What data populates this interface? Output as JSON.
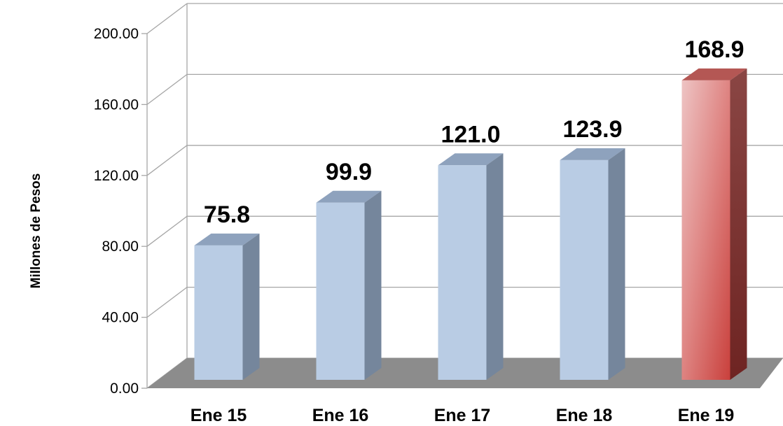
{
  "chart_data": {
    "type": "bar",
    "categories": [
      "Ene 15",
      "Ene 16",
      "Ene 17",
      "Ene 18",
      "Ene 19"
    ],
    "values": [
      75.8,
      99.9,
      121.0,
      123.9,
      168.9
    ],
    "value_labels": [
      "75.8",
      "99.9",
      "121.0",
      "123.9",
      "168.9"
    ],
    "ylabel": "Millones de Pesos",
    "xlabel": "",
    "ylim": [
      0,
      200
    ],
    "yticks": [
      "0.00",
      "40.00",
      "80.00",
      "120.00",
      "160.00",
      "200.00"
    ],
    "grid": true,
    "legend": "none",
    "three_d": true,
    "colors": {
      "default_bar": "#b9cce4",
      "highlight_bar": "#d9605c",
      "highlight_index": 4,
      "floor": "#8c8c8c",
      "grid": "#a6a6a6"
    }
  }
}
